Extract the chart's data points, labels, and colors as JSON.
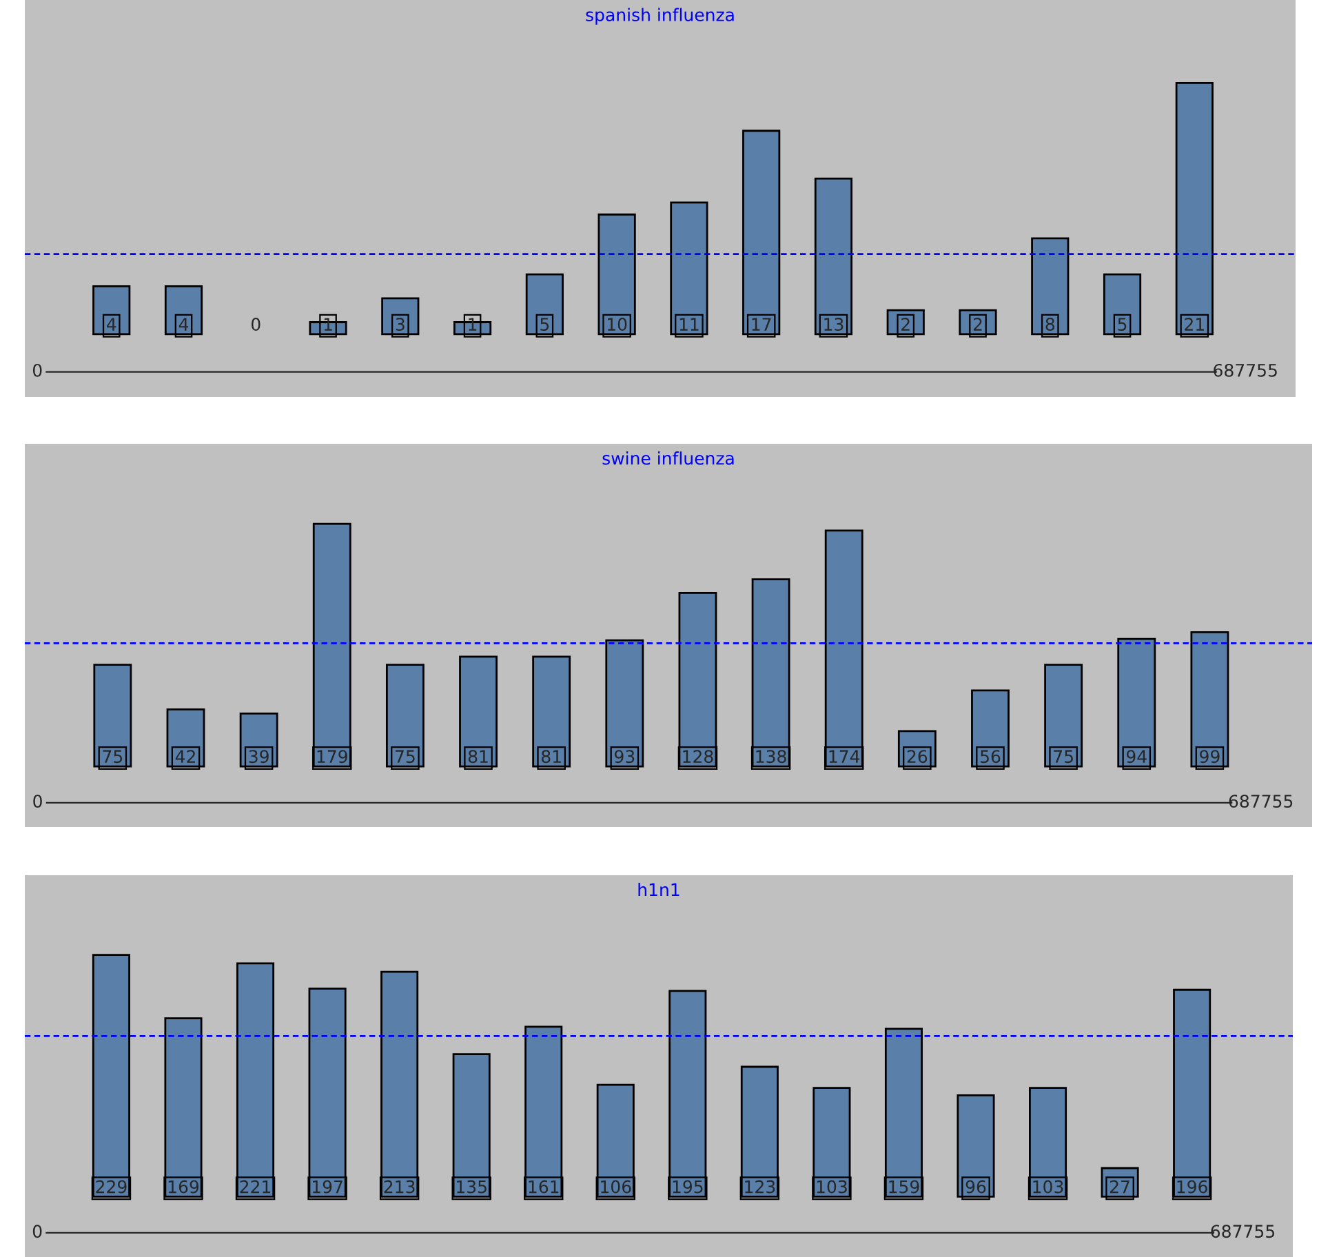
{
  "chart_data": [
    {
      "type": "bar",
      "title": "spanish influenza",
      "categories": [
        null,
        null,
        null,
        null,
        null,
        null,
        null,
        null,
        null,
        null,
        null,
        null,
        null,
        null,
        null,
        null
      ],
      "values": [
        4,
        4,
        0,
        1,
        3,
        1,
        5,
        10,
        11,
        17,
        13,
        2,
        2,
        8,
        5,
        21
      ],
      "color": "#5a7fa8",
      "data_labels": true,
      "ref_lines": [
        {
          "axis": "y",
          "value": 6.7,
          "color": "#0000ff",
          "line_style": "dashed"
        }
      ],
      "annotations": [
        "0",
        "687755"
      ],
      "grid": false,
      "legend": false
    },
    {
      "type": "bar",
      "title": "swine influenza",
      "categories": [
        null,
        null,
        null,
        null,
        null,
        null,
        null,
        null,
        null,
        null,
        null,
        null,
        null,
        null,
        null,
        null
      ],
      "values": [
        75,
        42,
        39,
        179,
        75,
        81,
        81,
        93,
        128,
        138,
        174,
        26,
        56,
        75,
        94,
        99
      ],
      "color": "#5a7fa8",
      "data_labels": true,
      "ref_lines": [
        {
          "axis": "y",
          "value": 90.9,
          "color": "#0000ff",
          "line_style": "dashed"
        }
      ],
      "annotations": [
        "0",
        "687755"
      ],
      "grid": false,
      "legend": false
    },
    {
      "type": "bar",
      "title": "h1n1",
      "categories": [
        null,
        null,
        null,
        null,
        null,
        null,
        null,
        null,
        null,
        null,
        null,
        null,
        null,
        null,
        null,
        null
      ],
      "values": [
        229,
        169,
        221,
        197,
        213,
        135,
        161,
        106,
        195,
        123,
        103,
        159,
        96,
        103,
        27,
        196
      ],
      "color": "#5a7fa8",
      "data_labels": true,
      "ref_lines": [
        {
          "axis": "y",
          "value": 152.1,
          "color": "#0000ff",
          "line_style": "dashed"
        }
      ],
      "annotations": [
        "0",
        "687755"
      ],
      "grid": false,
      "legend": false
    }
  ]
}
